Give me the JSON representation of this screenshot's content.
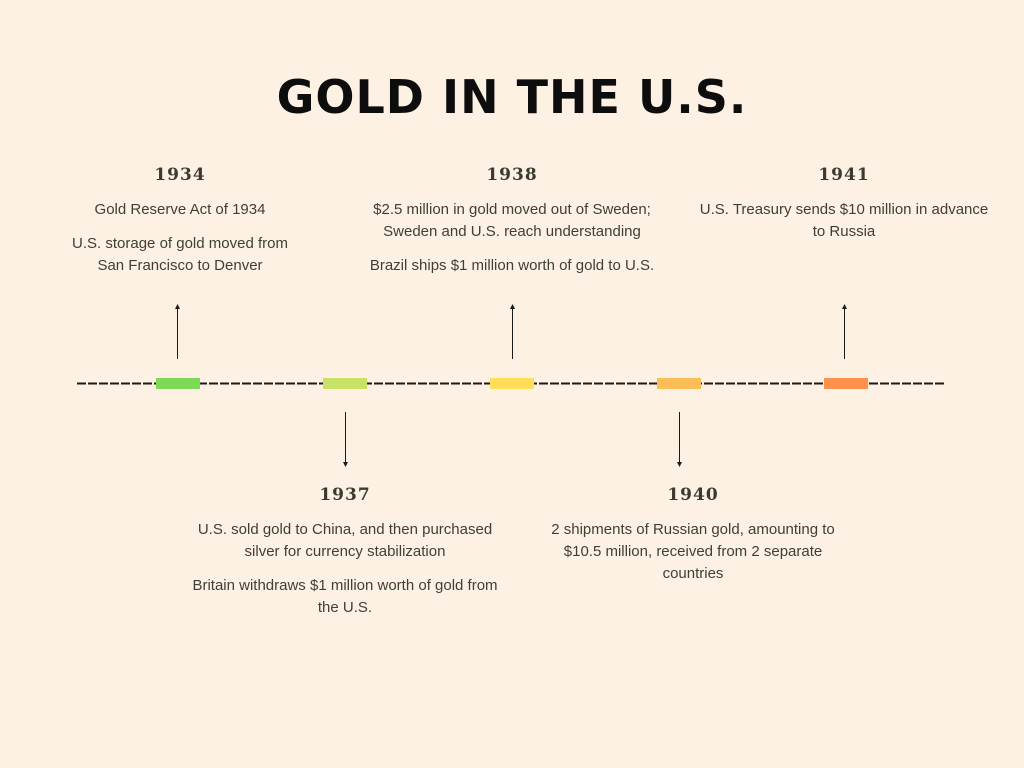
{
  "title": "GOLD IN THE U.S.",
  "events": [
    {
      "year": "1934",
      "lines": [
        "Gold Reserve Act of 1934",
        "U.S. storage of gold moved from San Francisco to Denver"
      ],
      "marker_color": "#7ed957"
    },
    {
      "year": "1937",
      "lines": [
        "U.S. sold gold to China, and then purchased silver for currency stabilization",
        "Britain withdraws $1 million worth of gold from the U.S."
      ],
      "marker_color": "#c9e265"
    },
    {
      "year": "1938",
      "lines": [
        "$2.5 million in gold moved out of Sweden; Sweden and U.S. reach understanding",
        "Brazil ships $1 million worth of gold to U.S."
      ],
      "marker_color": "#ffde59"
    },
    {
      "year": "1940",
      "lines": [
        "2 shipments of Russian gold, amounting to $10.5 million, received from 2 separate countries"
      ],
      "marker_color": "#ffbd59"
    },
    {
      "year": "1941",
      "lines": [
        "U.S. Treasury sends $10 million in advance to Russia"
      ],
      "marker_color": "#ff914d"
    }
  ],
  "colors": {
    "background": "#fdf1e4",
    "title": "#0d0d0d",
    "line": "#1a1a1a",
    "text": "#3f3f34"
  }
}
